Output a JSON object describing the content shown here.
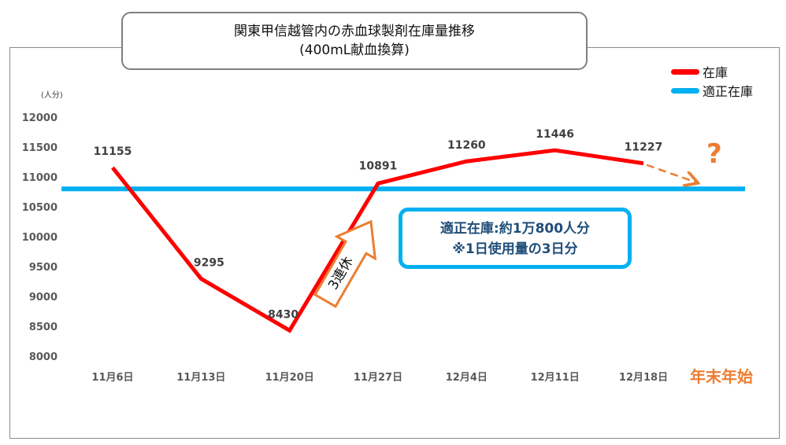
{
  "title": {
    "line1": "関東甲信越管内の赤血球製剤在庫量推移",
    "line2": "(400mL献血換算)"
  },
  "unit_label": "(人分)",
  "legend": {
    "stock": "在庫",
    "optimal": "適正在庫"
  },
  "colors": {
    "stock": "#ff0000",
    "optimal": "#00b0f0",
    "projection": "#ed7d31"
  },
  "annotations": {
    "holiday": "3連休",
    "info_line1": "適正在庫:約1万800人分",
    "info_line2": "※1日使用量の3日分",
    "year_end": "年末年始",
    "question": "?"
  },
  "chart_data": {
    "type": "line",
    "categories": [
      "11月6日",
      "11月13日",
      "11月20日",
      "11月27日",
      "12月4日",
      "12月11日",
      "12月18日"
    ],
    "series": [
      {
        "name": "在庫",
        "values": [
          11155,
          9295,
          8430,
          10891,
          11260,
          11446,
          11227
        ]
      },
      {
        "name": "適正在庫",
        "values": [
          10800,
          10800,
          10800,
          10800,
          10800,
          10800,
          10800
        ]
      }
    ],
    "data_labels": [
      "11155",
      "9295",
      "8430",
      "10891",
      "11260",
      "11446",
      "11227"
    ],
    "yticks": [
      8000,
      8500,
      9000,
      9500,
      10000,
      10500,
      11000,
      11500,
      12000
    ],
    "ylim": [
      8000,
      12000
    ],
    "grid": false,
    "legend_position": "top-right"
  }
}
